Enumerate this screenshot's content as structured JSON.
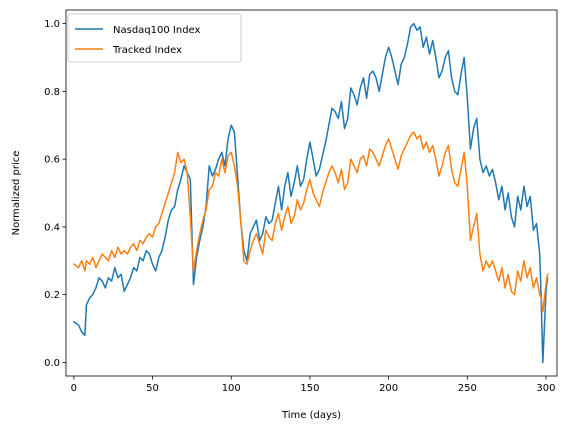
{
  "chart_data": {
    "type": "line",
    "title": "",
    "xlabel": "Time (days)",
    "ylabel": "Normalized price",
    "xlim": [
      -5,
      307
    ],
    "ylim": [
      -0.04,
      1.04
    ],
    "xticks": [
      0,
      50,
      100,
      150,
      200,
      250,
      300
    ],
    "yticks": [
      0.0,
      0.2,
      0.4,
      0.6,
      0.8,
      1.0
    ],
    "xtick_labels": [
      "0",
      "50",
      "100",
      "150",
      "200",
      "250",
      "300"
    ],
    "ytick_labels": [
      "0.0",
      "0.2",
      "0.4",
      "0.6",
      "0.8",
      "1.0"
    ],
    "grid": false,
    "legend_position": "upper-left",
    "series": [
      {
        "name": "Nasdaq100 Index",
        "color": "#1f77b4",
        "x": [
          0,
          3,
          5,
          7,
          8,
          10,
          12,
          14,
          16,
          18,
          20,
          22,
          24,
          26,
          28,
          30,
          32,
          34,
          36,
          38,
          40,
          42,
          44,
          46,
          48,
          50,
          52,
          54,
          56,
          58,
          60,
          62,
          64,
          66,
          68,
          70,
          72,
          74,
          76,
          78,
          80,
          82,
          84,
          86,
          88,
          90,
          92,
          94,
          96,
          98,
          100,
          102,
          104,
          106,
          108,
          110,
          112,
          114,
          116,
          118,
          120,
          122,
          124,
          126,
          128,
          130,
          132,
          134,
          136,
          138,
          140,
          142,
          144,
          146,
          148,
          150,
          152,
          154,
          156,
          158,
          160,
          162,
          164,
          166,
          168,
          170,
          172,
          174,
          176,
          178,
          180,
          182,
          184,
          186,
          188,
          190,
          192,
          194,
          196,
          198,
          200,
          202,
          204,
          206,
          208,
          210,
          212,
          214,
          216,
          218,
          220,
          222,
          224,
          226,
          228,
          230,
          232,
          234,
          236,
          238,
          240,
          242,
          244,
          246,
          248,
          250,
          252,
          254,
          256,
          258,
          260,
          262,
          264,
          266,
          268,
          270,
          272,
          274,
          276,
          278,
          280,
          282,
          284,
          286,
          288,
          290,
          292,
          294,
          296,
          297,
          298,
          300,
          301
        ],
        "y": [
          0.12,
          0.11,
          0.09,
          0.08,
          0.17,
          0.19,
          0.2,
          0.22,
          0.25,
          0.24,
          0.22,
          0.25,
          0.24,
          0.28,
          0.25,
          0.26,
          0.21,
          0.23,
          0.25,
          0.28,
          0.27,
          0.31,
          0.3,
          0.33,
          0.32,
          0.29,
          0.27,
          0.31,
          0.33,
          0.37,
          0.42,
          0.45,
          0.46,
          0.51,
          0.54,
          0.58,
          0.56,
          0.54,
          0.23,
          0.31,
          0.36,
          0.4,
          0.46,
          0.58,
          0.55,
          0.57,
          0.6,
          0.62,
          0.58,
          0.66,
          0.7,
          0.68,
          0.55,
          0.42,
          0.33,
          0.3,
          0.38,
          0.4,
          0.42,
          0.36,
          0.38,
          0.43,
          0.41,
          0.42,
          0.47,
          0.52,
          0.45,
          0.52,
          0.56,
          0.49,
          0.53,
          0.58,
          0.52,
          0.54,
          0.6,
          0.65,
          0.6,
          0.55,
          0.57,
          0.61,
          0.65,
          0.7,
          0.75,
          0.74,
          0.72,
          0.77,
          0.69,
          0.72,
          0.81,
          0.79,
          0.76,
          0.81,
          0.84,
          0.78,
          0.85,
          0.86,
          0.84,
          0.8,
          0.85,
          0.9,
          0.93,
          0.9,
          0.86,
          0.82,
          0.88,
          0.9,
          0.94,
          0.99,
          1.0,
          0.98,
          0.99,
          0.93,
          0.96,
          0.91,
          0.95,
          0.9,
          0.84,
          0.86,
          0.9,
          0.92,
          0.84,
          0.8,
          0.79,
          0.85,
          0.9,
          0.78,
          0.63,
          0.69,
          0.72,
          0.6,
          0.56,
          0.58,
          0.55,
          0.57,
          0.53,
          0.48,
          0.52,
          0.45,
          0.5,
          0.43,
          0.4,
          0.49,
          0.45,
          0.52,
          0.46,
          0.49,
          0.39,
          0.41,
          0.32,
          0.18,
          0.0,
          0.21,
          0.25
        ]
      },
      {
        "name": "Tracked Index",
        "color": "#ff7f0e",
        "x": [
          0,
          3,
          5,
          7,
          8,
          10,
          12,
          14,
          16,
          18,
          20,
          22,
          24,
          26,
          28,
          30,
          32,
          34,
          36,
          38,
          40,
          42,
          44,
          46,
          48,
          50,
          52,
          54,
          56,
          58,
          60,
          62,
          64,
          66,
          68,
          70,
          72,
          74,
          76,
          78,
          80,
          82,
          84,
          86,
          88,
          90,
          92,
          94,
          96,
          98,
          100,
          102,
          104,
          106,
          108,
          110,
          112,
          114,
          116,
          118,
          120,
          122,
          124,
          126,
          128,
          130,
          132,
          134,
          136,
          138,
          140,
          142,
          144,
          146,
          148,
          150,
          152,
          154,
          156,
          158,
          160,
          162,
          164,
          166,
          168,
          170,
          172,
          174,
          176,
          178,
          180,
          182,
          184,
          186,
          188,
          190,
          192,
          194,
          196,
          198,
          200,
          202,
          204,
          206,
          208,
          210,
          212,
          214,
          216,
          218,
          220,
          222,
          224,
          226,
          228,
          230,
          232,
          234,
          236,
          238,
          240,
          242,
          244,
          246,
          248,
          250,
          252,
          254,
          256,
          258,
          260,
          262,
          264,
          266,
          268,
          270,
          272,
          274,
          276,
          278,
          280,
          282,
          284,
          286,
          288,
          290,
          292,
          294,
          296,
          297,
          298,
          300,
          301
        ],
        "y": [
          0.29,
          0.28,
          0.3,
          0.27,
          0.3,
          0.29,
          0.31,
          0.28,
          0.3,
          0.32,
          0.31,
          0.3,
          0.33,
          0.31,
          0.34,
          0.32,
          0.33,
          0.32,
          0.34,
          0.35,
          0.33,
          0.36,
          0.35,
          0.37,
          0.38,
          0.37,
          0.4,
          0.41,
          0.44,
          0.47,
          0.5,
          0.53,
          0.56,
          0.62,
          0.59,
          0.6,
          0.56,
          0.43,
          0.27,
          0.33,
          0.38,
          0.42,
          0.45,
          0.51,
          0.52,
          0.56,
          0.55,
          0.6,
          0.56,
          0.61,
          0.62,
          0.58,
          0.52,
          0.42,
          0.3,
          0.29,
          0.33,
          0.36,
          0.38,
          0.35,
          0.32,
          0.39,
          0.37,
          0.36,
          0.41,
          0.44,
          0.39,
          0.43,
          0.46,
          0.41,
          0.43,
          0.48,
          0.45,
          0.47,
          0.51,
          0.54,
          0.5,
          0.48,
          0.46,
          0.5,
          0.53,
          0.56,
          0.58,
          0.56,
          0.53,
          0.57,
          0.51,
          0.53,
          0.6,
          0.58,
          0.56,
          0.6,
          0.61,
          0.58,
          0.63,
          0.62,
          0.6,
          0.58,
          0.61,
          0.64,
          0.66,
          0.63,
          0.6,
          0.57,
          0.61,
          0.63,
          0.65,
          0.67,
          0.68,
          0.66,
          0.67,
          0.63,
          0.65,
          0.62,
          0.64,
          0.6,
          0.55,
          0.58,
          0.62,
          0.64,
          0.57,
          0.53,
          0.52,
          0.57,
          0.62,
          0.52,
          0.36,
          0.4,
          0.44,
          0.32,
          0.27,
          0.3,
          0.28,
          0.3,
          0.27,
          0.24,
          0.28,
          0.22,
          0.26,
          0.21,
          0.2,
          0.27,
          0.24,
          0.3,
          0.25,
          0.28,
          0.22,
          0.25,
          0.2,
          0.19,
          0.15,
          0.23,
          0.26
        ]
      }
    ]
  }
}
